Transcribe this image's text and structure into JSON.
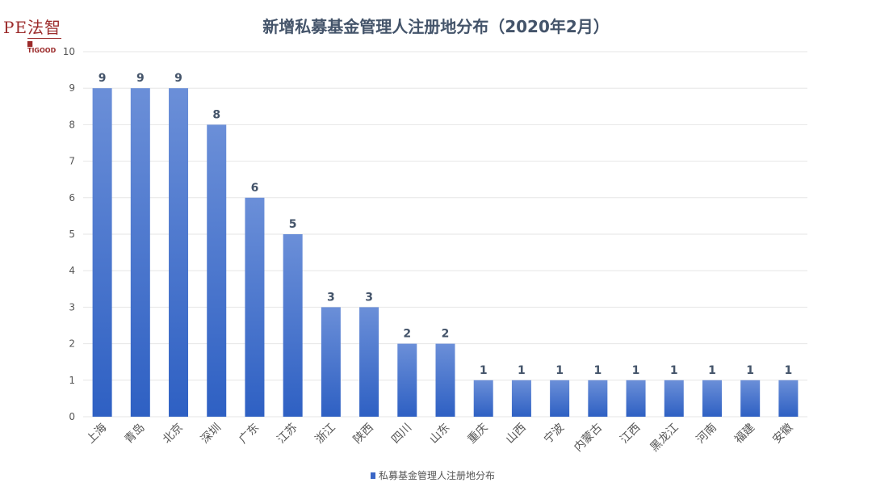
{
  "logo": {
    "main": "PE法智",
    "sub": "▆ TIGOOD"
  },
  "chart_data": {
    "type": "bar",
    "title": "新增私募基金管理人注册地分布（2020年2月）",
    "categories": [
      "上海",
      "青岛",
      "北京",
      "深圳",
      "广东",
      "江苏",
      "浙江",
      "陕西",
      "四川",
      "山东",
      "重庆",
      "山西",
      "宁波",
      "内蒙古",
      "江西",
      "黑龙江",
      "河南",
      "福建",
      "安徽"
    ],
    "series": [
      {
        "name": "私募基金管理人注册地分布",
        "values": [
          9,
          9,
          9,
          8,
          6,
          5,
          3,
          3,
          2,
          2,
          1,
          1,
          1,
          1,
          1,
          1,
          1,
          1,
          1
        ]
      }
    ],
    "ylim": [
      0,
      10
    ],
    "yticks": [
      0,
      1,
      2,
      3,
      4,
      5,
      6,
      7,
      8,
      9,
      10
    ],
    "xlabel": "",
    "ylabel": "",
    "grid": true,
    "legend": "bottom-center",
    "colors": {
      "bar_top": "#6b8fd8",
      "bar_bottom": "#2e60c3",
      "label": "#44546a",
      "grid": "#e6e6e6"
    }
  }
}
